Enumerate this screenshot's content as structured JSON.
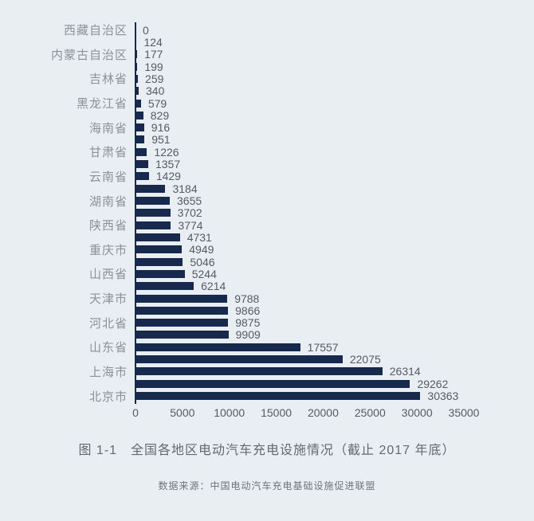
{
  "figure": {
    "background_color": "#e9eef2"
  },
  "chart_data": {
    "type": "bar",
    "orientation": "horizontal",
    "title": "图 1-1　全国各地区电动汽车充电设施情况（截止 2017 年底）",
    "source_note": "数据来源：中国电动汽车充电基础设施促进联盟",
    "xlabel": "",
    "ylabel": "",
    "xlim": [
      0,
      35000
    ],
    "x_ticks": [
      0,
      5000,
      10000,
      15000,
      20000,
      25000,
      30000,
      35000
    ],
    "grid": false,
    "legend": null,
    "bar_color": "#17294d",
    "axis_color": "#17294d",
    "category_label_color": "#8b9197",
    "value_label_color": "#555b62",
    "note": "31 bars sorted ascending top-to-bottom is descending? top is smallest; category labels shown only on alternate bars",
    "categories": [
      "西藏自治区",
      "",
      "内蒙古自治区",
      "",
      "吉林省",
      "",
      "黑龙江省",
      "",
      "海南省",
      "",
      "甘肃省",
      "",
      "云南省",
      "",
      "湖南省",
      "",
      "陕西省",
      "",
      "重庆市",
      "",
      "山西省",
      "",
      "天津市",
      "",
      "河北省",
      "",
      "山东省",
      "",
      "上海市",
      "",
      "北京市"
    ],
    "values": [
      0,
      124,
      177,
      199,
      259,
      340,
      579,
      829,
      916,
      951,
      1226,
      1357,
      1429,
      3184,
      3655,
      3702,
      3774,
      4731,
      4949,
      5046,
      5244,
      6214,
      9788,
      9866,
      9875,
      9909,
      17557,
      22075,
      26314,
      29262,
      30363
    ]
  }
}
